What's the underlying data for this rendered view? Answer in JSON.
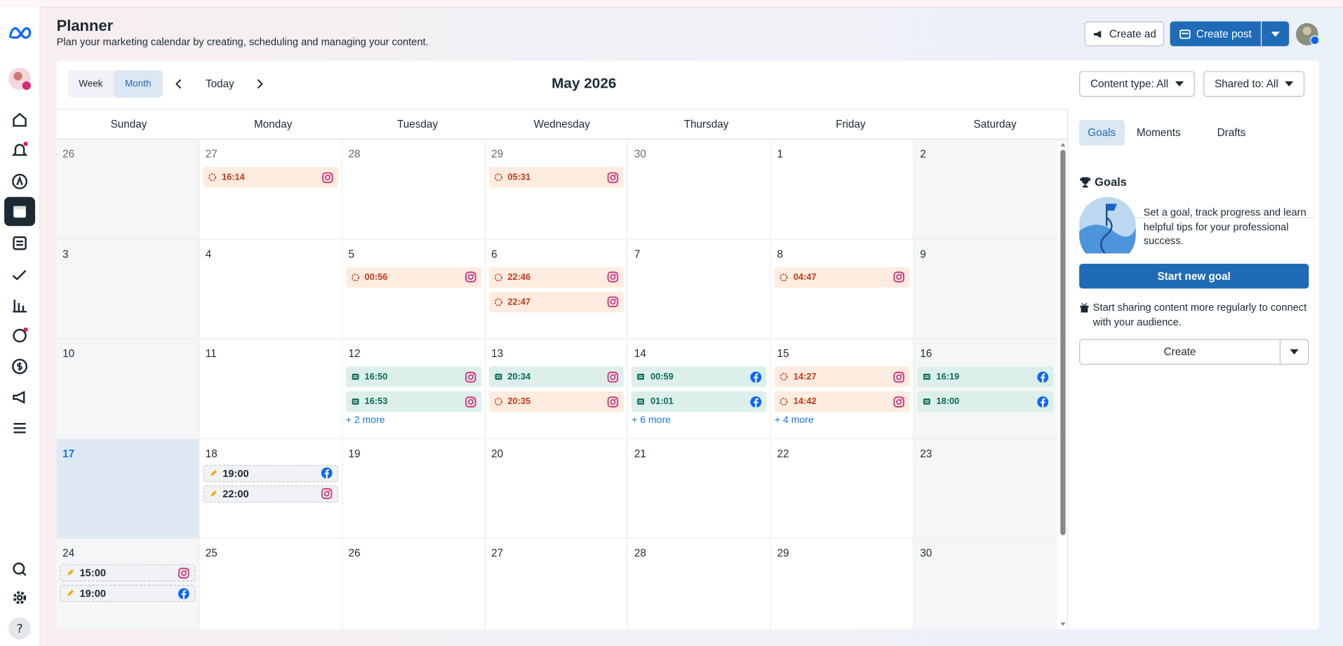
{
  "header": {
    "title": "Planner",
    "subtitle": "Plan your marketing calendar by creating, scheduling and managing your content.",
    "create_ad": "Create ad",
    "create_post": "Create post"
  },
  "toolbar": {
    "week": "Week",
    "month": "Month",
    "today": "Today",
    "month_title": "May 2026",
    "content_type": "Content type: All",
    "shared_to": "Shared to: All"
  },
  "weekdays": [
    "Sunday",
    "Monday",
    "Tuesday",
    "Wednesday",
    "Thursday",
    "Friday",
    "Saturday"
  ],
  "weeks": [
    [
      {
        "day": 26,
        "muted": true,
        "events": []
      },
      {
        "day": 27,
        "muted": true,
        "events": [
          {
            "time": "16:14",
            "style": "scheduled",
            "platform": "instagram"
          }
        ]
      },
      {
        "day": 28,
        "muted": true,
        "events": []
      },
      {
        "day": 29,
        "muted": true,
        "events": [
          {
            "time": "05:31",
            "style": "scheduled",
            "platform": "instagram"
          }
        ]
      },
      {
        "day": 30,
        "muted": true,
        "events": []
      },
      {
        "day": 1,
        "events": []
      },
      {
        "day": 2,
        "events": []
      }
    ],
    [
      {
        "day": 3,
        "events": []
      },
      {
        "day": 4,
        "events": []
      },
      {
        "day": 5,
        "events": [
          {
            "time": "00:56",
            "style": "scheduled",
            "platform": "instagram"
          }
        ]
      },
      {
        "day": 6,
        "events": [
          {
            "time": "22:46",
            "style": "scheduled",
            "platform": "instagram"
          },
          {
            "time": "22:47",
            "style": "scheduled",
            "platform": "instagram"
          }
        ]
      },
      {
        "day": 7,
        "events": []
      },
      {
        "day": 8,
        "events": [
          {
            "time": "04:47",
            "style": "scheduled",
            "platform": "instagram"
          }
        ]
      },
      {
        "day": 9,
        "events": []
      }
    ],
    [
      {
        "day": 10,
        "events": []
      },
      {
        "day": 11,
        "events": []
      },
      {
        "day": 12,
        "events": [
          {
            "time": "16:50",
            "style": "published",
            "platform": "instagram"
          },
          {
            "time": "16:53",
            "style": "published",
            "platform": "instagram"
          }
        ],
        "more": "+ 2 more"
      },
      {
        "day": 13,
        "events": [
          {
            "time": "20:34",
            "style": "published",
            "platform": "instagram"
          },
          {
            "time": "20:35",
            "style": "scheduled",
            "platform": "instagram"
          }
        ]
      },
      {
        "day": 14,
        "events": [
          {
            "time": "00:59",
            "style": "published",
            "platform": "facebook"
          },
          {
            "time": "01:01",
            "style": "published",
            "platform": "facebook"
          }
        ],
        "more": "+ 6 more"
      },
      {
        "day": 15,
        "events": [
          {
            "time": "14:27",
            "style": "scheduled",
            "platform": "instagram"
          },
          {
            "time": "14:42",
            "style": "scheduled",
            "platform": "instagram"
          }
        ],
        "more": "+ 4 more"
      },
      {
        "day": 16,
        "events": [
          {
            "time": "16:19",
            "style": "published",
            "platform": "facebook"
          },
          {
            "time": "18:00",
            "style": "published",
            "platform": "facebook"
          }
        ]
      }
    ],
    [
      {
        "day": 17,
        "today": true,
        "events": []
      },
      {
        "day": 18,
        "events": [
          {
            "time": "19:00",
            "style": "draft",
            "platform": "facebook"
          },
          {
            "time": "22:00",
            "style": "draft",
            "platform": "instagram"
          }
        ]
      },
      {
        "day": 19,
        "events": []
      },
      {
        "day": 20,
        "events": []
      },
      {
        "day": 21,
        "events": []
      },
      {
        "day": 22,
        "events": []
      },
      {
        "day": 23,
        "events": []
      }
    ],
    [
      {
        "day": 24,
        "events": [
          {
            "time": "15:00",
            "style": "draft",
            "platform": "instagram"
          },
          {
            "time": "19:00",
            "style": "draft",
            "platform": "facebook"
          }
        ]
      },
      {
        "day": 25,
        "events": []
      },
      {
        "day": 26,
        "events": []
      },
      {
        "day": 27,
        "events": []
      },
      {
        "day": 28,
        "events": []
      },
      {
        "day": 29,
        "events": []
      },
      {
        "day": 30,
        "events": []
      }
    ]
  ],
  "panel": {
    "tabs": [
      "Goals",
      "Moments",
      "Drafts"
    ],
    "goals_title": "Goals",
    "goals_text": "Set a goal, track progress and learn helpful tips for your professional success.",
    "goal_button": "Start new goal",
    "share_text": "Start sharing content more regularly to connect with your audience.",
    "create": "Create"
  }
}
